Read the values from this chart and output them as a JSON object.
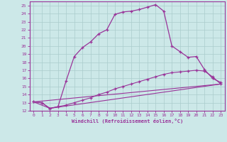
{
  "background_color": "#cce8e8",
  "grid_color": "#aacccc",
  "line_color": "#993399",
  "xlim": [
    -0.5,
    23.5
  ],
  "ylim": [
    12,
    25.5
  ],
  "xlabel": "Windchill (Refroidissement éolien,°C)",
  "yticks": [
    12,
    13,
    14,
    15,
    16,
    17,
    18,
    19,
    20,
    21,
    22,
    23,
    24,
    25
  ],
  "xticks": [
    0,
    1,
    2,
    3,
    4,
    5,
    6,
    7,
    8,
    9,
    10,
    11,
    12,
    13,
    14,
    15,
    16,
    17,
    18,
    19,
    20,
    21,
    22,
    23
  ],
  "line1_x": [
    0,
    1,
    2,
    3,
    4,
    5,
    6,
    7,
    8,
    9,
    10,
    11,
    12,
    13,
    14,
    15,
    16,
    17,
    18,
    19,
    20,
    21,
    22,
    23
  ],
  "line1_y": [
    13.1,
    13.0,
    12.3,
    12.5,
    15.7,
    18.7,
    19.8,
    20.5,
    21.5,
    22.0,
    23.9,
    24.2,
    24.3,
    24.5,
    24.8,
    25.1,
    24.3,
    20.0,
    19.3,
    18.6,
    18.7,
    17.1,
    16.0,
    15.5
  ],
  "line2_x": [
    0,
    1,
    2,
    3,
    4,
    5,
    6,
    7,
    8,
    9,
    10,
    11,
    12,
    13,
    14,
    15,
    16,
    17,
    18,
    19,
    20,
    21,
    22,
    23
  ],
  "line2_y": [
    13.1,
    13.0,
    12.3,
    12.5,
    12.7,
    13.0,
    13.3,
    13.6,
    14.0,
    14.3,
    14.7,
    15.0,
    15.3,
    15.6,
    15.9,
    16.2,
    16.5,
    16.7,
    16.8,
    16.9,
    17.0,
    16.9,
    16.2,
    15.3
  ],
  "line3_x": [
    0,
    23
  ],
  "line3_y": [
    13.1,
    15.3
  ],
  "line4_x": [
    0,
    2,
    23
  ],
  "line4_y": [
    13.1,
    12.3,
    15.3
  ],
  "font_family": "monospace"
}
